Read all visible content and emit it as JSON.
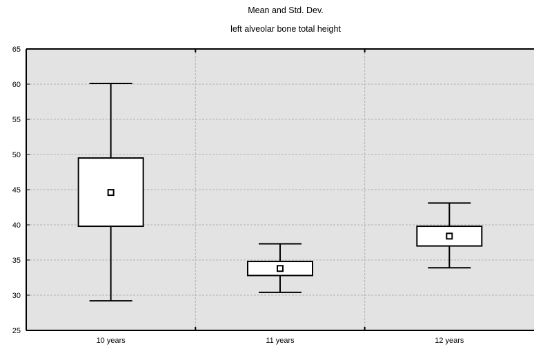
{
  "chart_data": {
    "type": "box",
    "title": "Mean and Std. Dev.",
    "subtitle": "left alveolar bone total height",
    "xlabel": "",
    "ylabel": "",
    "ylim": [
      25,
      65
    ],
    "yticks": [
      25,
      30,
      35,
      40,
      45,
      50,
      55,
      60,
      65
    ],
    "grid": true,
    "legend": "none",
    "categories": [
      "10 years",
      "11 years",
      "12 years"
    ],
    "series": [
      {
        "name": "",
        "mean": [
          44.6,
          33.8,
          38.4
        ],
        "std_low": [
          39.8,
          32.8,
          37.0
        ],
        "std_high": [
          49.5,
          34.8,
          39.8
        ],
        "whisker_low": [
          29.2,
          30.4,
          33.9
        ],
        "whisker_high": [
          60.1,
          37.3,
          43.1
        ]
      }
    ],
    "colors": {
      "plot_background": "#e3e3e3",
      "grid": "#b3b3b3",
      "box_fill": "#ffffff",
      "stroke": "#000000"
    }
  }
}
